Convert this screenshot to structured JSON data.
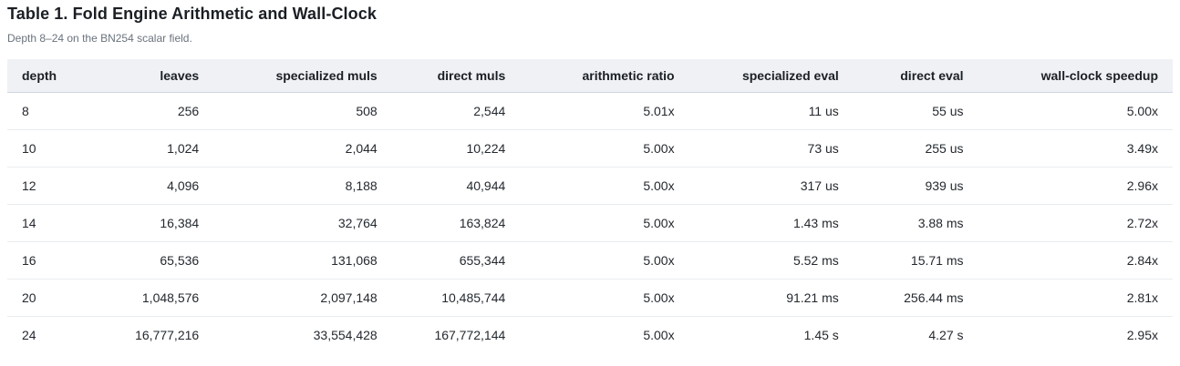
{
  "page": {
    "title": "Table 1. Fold Engine Arithmetic and Wall-Clock",
    "subtitle": "Depth 8–24 on the BN254 scalar field."
  },
  "table": {
    "columns": [
      {
        "key": "depth",
        "label": "depth"
      },
      {
        "key": "leaves",
        "label": "leaves"
      },
      {
        "key": "specialized-muls",
        "label": "specialized muls"
      },
      {
        "key": "direct-muls",
        "label": "direct muls"
      },
      {
        "key": "arithmetic-ratio",
        "label": "arithmetic ratio"
      },
      {
        "key": "specialized-eval",
        "label": "specialized eval"
      },
      {
        "key": "direct-eval",
        "label": "direct eval"
      },
      {
        "key": "wall-clock-speedup",
        "label": "wall-clock speedup"
      }
    ],
    "rows": [
      [
        "8",
        "256",
        "508",
        "2,544",
        "5.01x",
        "11 us",
        "55 us",
        "5.00x"
      ],
      [
        "10",
        "1,024",
        "2,044",
        "10,224",
        "5.00x",
        "73 us",
        "255 us",
        "3.49x"
      ],
      [
        "12",
        "4,096",
        "8,188",
        "40,944",
        "5.00x",
        "317 us",
        "939 us",
        "2.96x"
      ],
      [
        "14",
        "16,384",
        "32,764",
        "163,824",
        "5.00x",
        "1.43 ms",
        "3.88 ms",
        "2.72x"
      ],
      [
        "16",
        "65,536",
        "131,068",
        "655,344",
        "5.00x",
        "5.52 ms",
        "15.71 ms",
        "2.84x"
      ],
      [
        "20",
        "1,048,576",
        "2,097,148",
        "10,485,744",
        "5.00x",
        "91.21 ms",
        "256.44 ms",
        "2.81x"
      ],
      [
        "24",
        "16,777,216",
        "33,554,428",
        "167,772,144",
        "5.00x",
        "1.45 s",
        "4.27 s",
        "2.95x"
      ]
    ]
  },
  "colors": {
    "header_bg": "#eff1f5",
    "header_border": "#d0d7de",
    "row_border": "#e9ecef",
    "text": "#24292f",
    "subtitle_text": "#6a737d"
  }
}
